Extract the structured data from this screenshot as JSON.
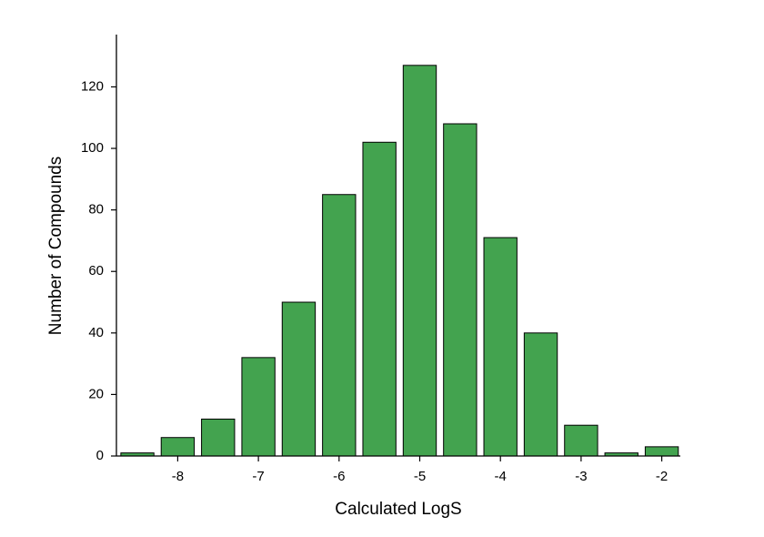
{
  "chart_data": {
    "type": "bar",
    "x_label": "Calculated LogS",
    "y_label": "Number of Compounds",
    "x": [
      -8.5,
      -8,
      -7.5,
      -7,
      -6.5,
      -6,
      -5.5,
      -5,
      -4.5,
      -4,
      -3.5,
      -3,
      -2.5,
      -2
    ],
    "values": [
      1,
      6,
      12,
      32,
      50,
      85,
      102,
      127,
      108,
      71,
      40,
      10,
      1,
      3
    ],
    "color": "#43a34f",
    "xlim": [
      -8.76,
      -1.77
    ],
    "ylim": [
      0,
      137
    ],
    "xticks": [
      -8,
      -7,
      -6,
      -5,
      -4,
      -3,
      -2
    ],
    "yticks": [
      0,
      20,
      40,
      60,
      80,
      100,
      120
    ],
    "grid": false
  }
}
